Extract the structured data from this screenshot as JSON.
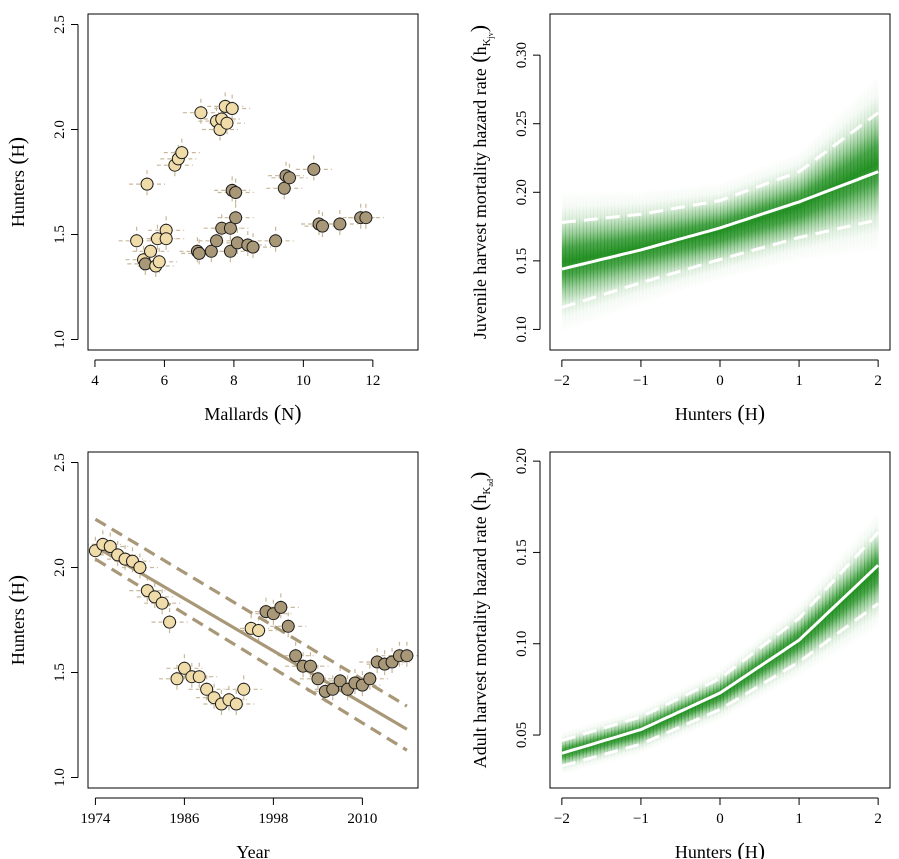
{
  "chart_data": [
    {
      "type": "scatter",
      "xlabel": "Mallards",
      "xlabel_symbol": "N",
      "ylabel": "Hunters",
      "ylabel_symbol": "H",
      "xlim": [
        3.8,
        13.3
      ],
      "ylim": [
        0.95,
        2.55
      ],
      "xticks": [
        4,
        6,
        8,
        10,
        12
      ],
      "yticks": [
        1.0,
        1.5,
        2.0,
        2.5
      ],
      "ytick_labels": [
        "1.0",
        "1.5",
        "2.0",
        "2.5"
      ],
      "colors": {
        "light": "#f0dca8",
        "dark": "#a89878",
        "error_bar": "#c8b89a"
      },
      "points": [
        {
          "x": 5.2,
          "y": 1.47,
          "c": "light"
        },
        {
          "x": 5.4,
          "y": 1.38,
          "c": "light"
        },
        {
          "x": 5.45,
          "y": 1.36,
          "c": "dark"
        },
        {
          "x": 5.6,
          "y": 1.42,
          "c": "light"
        },
        {
          "x": 5.5,
          "y": 1.74,
          "c": "light"
        },
        {
          "x": 5.8,
          "y": 1.48,
          "c": "light"
        },
        {
          "x": 5.75,
          "y": 1.35,
          "c": "light"
        },
        {
          "x": 5.85,
          "y": 1.37,
          "c": "light"
        },
        {
          "x": 6.05,
          "y": 1.52,
          "c": "light"
        },
        {
          "x": 6.05,
          "y": 1.48,
          "c": "light"
        },
        {
          "x": 6.3,
          "y": 1.83,
          "c": "light"
        },
        {
          "x": 6.4,
          "y": 1.86,
          "c": "light"
        },
        {
          "x": 6.5,
          "y": 1.89,
          "c": "light"
        },
        {
          "x": 7.05,
          "y": 2.08,
          "c": "light"
        },
        {
          "x": 7.5,
          "y": 2.04,
          "c": "light"
        },
        {
          "x": 7.6,
          "y": 2.0,
          "c": "light"
        },
        {
          "x": 7.65,
          "y": 2.05,
          "c": "light"
        },
        {
          "x": 7.75,
          "y": 2.11,
          "c": "light"
        },
        {
          "x": 7.8,
          "y": 2.03,
          "c": "light"
        },
        {
          "x": 7.95,
          "y": 2.1,
          "c": "light"
        },
        {
          "x": 6.95,
          "y": 1.42,
          "c": "dark"
        },
        {
          "x": 7.0,
          "y": 1.41,
          "c": "dark"
        },
        {
          "x": 7.35,
          "y": 1.42,
          "c": "dark"
        },
        {
          "x": 7.5,
          "y": 1.47,
          "c": "dark"
        },
        {
          "x": 7.65,
          "y": 1.53,
          "c": "dark"
        },
        {
          "x": 7.9,
          "y": 1.42,
          "c": "dark"
        },
        {
          "x": 7.9,
          "y": 1.53,
          "c": "dark"
        },
        {
          "x": 7.95,
          "y": 1.71,
          "c": "dark"
        },
        {
          "x": 8.05,
          "y": 1.7,
          "c": "dark"
        },
        {
          "x": 8.05,
          "y": 1.58,
          "c": "dark"
        },
        {
          "x": 8.1,
          "y": 1.46,
          "c": "dark"
        },
        {
          "x": 8.4,
          "y": 1.45,
          "c": "dark"
        },
        {
          "x": 8.55,
          "y": 1.44,
          "c": "dark"
        },
        {
          "x": 9.2,
          "y": 1.47,
          "c": "dark"
        },
        {
          "x": 9.45,
          "y": 1.72,
          "c": "dark"
        },
        {
          "x": 9.5,
          "y": 1.78,
          "c": "dark"
        },
        {
          "x": 9.6,
          "y": 1.77,
          "c": "dark"
        },
        {
          "x": 10.3,
          "y": 1.81,
          "c": "dark"
        },
        {
          "x": 10.45,
          "y": 1.55,
          "c": "dark"
        },
        {
          "x": 10.55,
          "y": 1.54,
          "c": "dark"
        },
        {
          "x": 11.05,
          "y": 1.55,
          "c": "dark"
        },
        {
          "x": 11.65,
          "y": 1.58,
          "c": "dark"
        },
        {
          "x": 11.8,
          "y": 1.58,
          "c": "dark"
        }
      ]
    },
    {
      "type": "line",
      "xlabel": "Hunters",
      "xlabel_symbol": "H",
      "ylabel": "Juvenile harvest mortality hazard rate",
      "ylabel_symbol": "h",
      "ylabel_subscript": "K",
      "ylabel_subsubscript": "jv",
      "xlim": [
        -2.15,
        2.15
      ],
      "ylim": [
        0.085,
        0.33
      ],
      "xticks": [
        -2,
        -1,
        0,
        1,
        2
      ],
      "xtick_labels": [
        "−2",
        "−1",
        "0",
        "1",
        "2"
      ],
      "yticks": [
        0.1,
        0.15,
        0.2,
        0.25,
        0.3
      ],
      "ytick_labels": [
        "0.10",
        "0.15",
        "0.20",
        "0.25",
        "0.30"
      ],
      "colors": {
        "band": "#1a8c1a",
        "line": "#ffffff"
      },
      "x": [
        -2.0,
        -1.0,
        0.0,
        1.0,
        2.0
      ],
      "series": [
        {
          "values": [
            0.144,
            0.158,
            0.174,
            0.193,
            0.215
          ]
        },
        {
          "values": [
            0.178,
            0.184,
            0.194,
            0.215,
            0.258
          ],
          "dash": true
        },
        {
          "values": [
            0.116,
            0.134,
            0.151,
            0.167,
            0.18
          ],
          "dash": true
        }
      ]
    },
    {
      "type": "scatter",
      "xlabel": "Year",
      "ylabel": "Hunters",
      "ylabel_symbol": "H",
      "xlim": [
        1973,
        2017.5
      ],
      "ylim": [
        0.95,
        2.55
      ],
      "xticks": [
        1974,
        1986,
        1998,
        2010
      ],
      "yticks": [
        1.0,
        1.5,
        2.0,
        2.5
      ],
      "ytick_labels": [
        "1.0",
        "1.5",
        "2.0",
        "2.5"
      ],
      "colors": {
        "light": "#f0dca8",
        "dark": "#a89878",
        "trend": "#a89878",
        "error_bar": "#c8b89a"
      },
      "trend": {
        "x": [
          1974,
          2016
        ],
        "y": [
          2.1,
          1.23
        ]
      },
      "trend_upper": {
        "x": [
          1974,
          2016
        ],
        "y": [
          2.23,
          1.34
        ]
      },
      "trend_lower": {
        "x": [
          1974,
          2016
        ],
        "y": [
          2.04,
          1.13
        ]
      },
      "points": [
        {
          "x": 1974,
          "y": 2.08,
          "c": "light"
        },
        {
          "x": 1975,
          "y": 2.11,
          "c": "light"
        },
        {
          "x": 1976,
          "y": 2.1,
          "c": "light"
        },
        {
          "x": 1977,
          "y": 2.06,
          "c": "light"
        },
        {
          "x": 1978,
          "y": 2.04,
          "c": "light"
        },
        {
          "x": 1979,
          "y": 2.03,
          "c": "light"
        },
        {
          "x": 1980,
          "y": 2.0,
          "c": "light"
        },
        {
          "x": 1981,
          "y": 1.89,
          "c": "light"
        },
        {
          "x": 1982,
          "y": 1.86,
          "c": "light"
        },
        {
          "x": 1983,
          "y": 1.83,
          "c": "light"
        },
        {
          "x": 1984,
          "y": 1.74,
          "c": "light"
        },
        {
          "x": 1985,
          "y": 1.47,
          "c": "light"
        },
        {
          "x": 1986,
          "y": 1.52,
          "c": "light"
        },
        {
          "x": 1987,
          "y": 1.48,
          "c": "light"
        },
        {
          "x": 1988,
          "y": 1.48,
          "c": "light"
        },
        {
          "x": 1989,
          "y": 1.42,
          "c": "light"
        },
        {
          "x": 1990,
          "y": 1.38,
          "c": "light"
        },
        {
          "x": 1991,
          "y": 1.35,
          "c": "light"
        },
        {
          "x": 1992,
          "y": 1.37,
          "c": "light"
        },
        {
          "x": 1993,
          "y": 1.35,
          "c": "light"
        },
        {
          "x": 1994,
          "y": 1.42,
          "c": "light"
        },
        {
          "x": 1995,
          "y": 1.71,
          "c": "light"
        },
        {
          "x": 1996,
          "y": 1.7,
          "c": "light"
        },
        {
          "x": 1997,
          "y": 1.79,
          "c": "dark"
        },
        {
          "x": 1998,
          "y": 1.78,
          "c": "dark"
        },
        {
          "x": 1999,
          "y": 1.81,
          "c": "dark"
        },
        {
          "x": 2000,
          "y": 1.72,
          "c": "dark"
        },
        {
          "x": 2001,
          "y": 1.58,
          "c": "dark"
        },
        {
          "x": 2002,
          "y": 1.53,
          "c": "dark"
        },
        {
          "x": 2003,
          "y": 1.53,
          "c": "dark"
        },
        {
          "x": 2004,
          "y": 1.47,
          "c": "dark"
        },
        {
          "x": 2005,
          "y": 1.41,
          "c": "dark"
        },
        {
          "x": 2006,
          "y": 1.42,
          "c": "dark"
        },
        {
          "x": 2007,
          "y": 1.46,
          "c": "dark"
        },
        {
          "x": 2008,
          "y": 1.42,
          "c": "dark"
        },
        {
          "x": 2009,
          "y": 1.45,
          "c": "dark"
        },
        {
          "x": 2010,
          "y": 1.44,
          "c": "dark"
        },
        {
          "x": 2011,
          "y": 1.47,
          "c": "dark"
        },
        {
          "x": 2012,
          "y": 1.55,
          "c": "dark"
        },
        {
          "x": 2013,
          "y": 1.54,
          "c": "dark"
        },
        {
          "x": 2014,
          "y": 1.55,
          "c": "dark"
        },
        {
          "x": 2015,
          "y": 1.58,
          "c": "dark"
        },
        {
          "x": 2016,
          "y": 1.58,
          "c": "dark"
        }
      ]
    },
    {
      "type": "line",
      "xlabel": "Hunters",
      "xlabel_symbol": "H",
      "ylabel": "Adult harvest mortality hazard rate",
      "ylabel_symbol": "h",
      "ylabel_subscript": "K",
      "ylabel_subsubscript": "ad",
      "xlim": [
        -2.15,
        2.15
      ],
      "ylim": [
        0.021,
        0.205
      ],
      "xticks": [
        -2,
        -1,
        0,
        1,
        2
      ],
      "xtick_labels": [
        "−2",
        "−1",
        "0",
        "1",
        "2"
      ],
      "yticks": [
        0.05,
        0.1,
        0.15,
        0.2
      ],
      "ytick_labels": [
        "0.05",
        "0.10",
        "0.15",
        "0.20"
      ],
      "colors": {
        "band": "#1a8c1a",
        "line": "#ffffff"
      },
      "x": [
        -2.0,
        -1.0,
        0.0,
        1.0,
        2.0
      ],
      "series": [
        {
          "values": [
            0.04,
            0.053,
            0.073,
            0.102,
            0.143
          ]
        },
        {
          "values": [
            0.047,
            0.06,
            0.081,
            0.114,
            0.161
          ],
          "dash": true
        },
        {
          "values": [
            0.033,
            0.045,
            0.064,
            0.09,
            0.122
          ],
          "dash": true
        }
      ]
    }
  ]
}
